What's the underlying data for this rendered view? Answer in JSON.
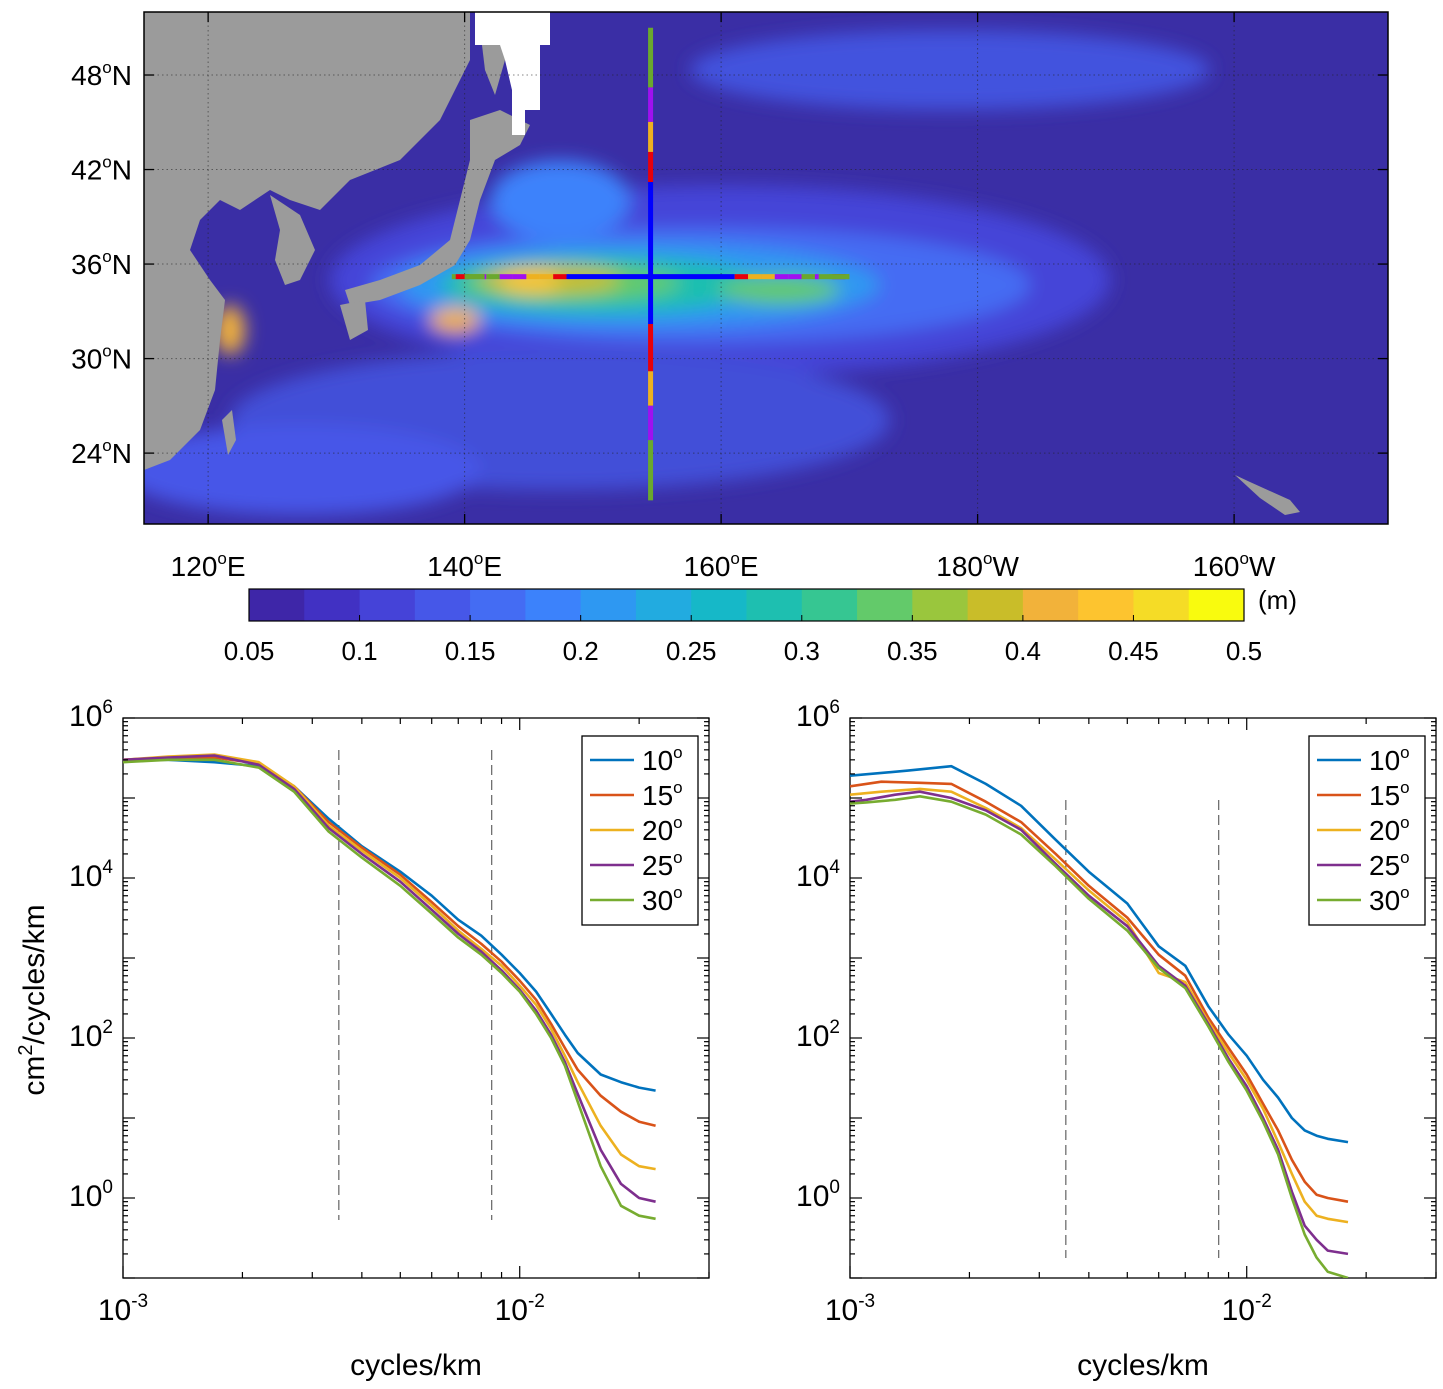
{
  "chart_data": [
    {
      "type": "heatmap",
      "title": "",
      "x_ticks": [
        {
          "lon": 120,
          "label": "120",
          "suffix": "E"
        },
        {
          "lon": 140,
          "label": "140",
          "suffix": "E"
        },
        {
          "lon": 160,
          "label": "160",
          "suffix": "E"
        },
        {
          "lon": 180,
          "label": "180",
          "suffix": "W"
        },
        {
          "lon": 200,
          "label": "160",
          "suffix": "W"
        }
      ],
      "y_ticks": [
        {
          "lat": 24,
          "label": "24",
          "suffix": "N"
        },
        {
          "lat": 30,
          "label": "30",
          "suffix": "N"
        },
        {
          "lat": 36,
          "label": "36",
          "suffix": "N"
        },
        {
          "lat": 42,
          "label": "42",
          "suffix": "N"
        },
        {
          "lat": 48,
          "label": "48",
          "suffix": "N"
        }
      ],
      "xlim": [
        115,
        212
      ],
      "ylim": [
        19.5,
        52
      ],
      "grid": true,
      "colorbar": {
        "unit": "(m)",
        "range": [
          0.05,
          0.5
        ],
        "tick_labels": [
          "0.05",
          "0.1",
          "0.15",
          "0.2",
          "0.25",
          "0.3",
          "0.35",
          "0.4",
          "0.45",
          "0.5"
        ],
        "colors": [
          "#3e26a8",
          "#4131c3",
          "#4543d8",
          "#4657e8",
          "#446cf3",
          "#3c82fb",
          "#2e98f2",
          "#22abe0",
          "#16b8c8",
          "#1ebfb0",
          "#36c692",
          "#63ca6a",
          "#9ac63d",
          "#c9bd29",
          "#f2b23a",
          "#fdc42f",
          "#f5dc26",
          "#f9fb0e"
        ]
      },
      "transects": {
        "zonal": {
          "lat": 35.2,
          "lon_range": [
            140,
            170
          ]
        },
        "meridional": {
          "lon": 154.5,
          "lat_range": [
            21,
            51
          ]
        },
        "segment_colors": [
          "#0000ff",
          "#e8000b",
          "#edb120",
          "#a010f0",
          "#6aa82e"
        ]
      },
      "land_color": "#9b9b9b",
      "ocean_background": "#3a2ea5"
    },
    {
      "type": "line",
      "xscale": "log",
      "yscale": "log",
      "xlabel": "cycles/km",
      "ylabel": "cm2/cycles/km",
      "xlim": [
        0.001,
        0.03
      ],
      "ylim": [
        0.1,
        1000000
      ],
      "x_ticks": [
        {
          "value": 0.001,
          "base": "10",
          "exp": "-3"
        },
        {
          "value": 0.01,
          "base": "10",
          "exp": "-2"
        }
      ],
      "y_ticks": [
        {
          "value": 1,
          "base": "10",
          "exp": "0"
        },
        {
          "value": 100,
          "base": "10",
          "exp": "2"
        },
        {
          "value": 10000,
          "base": "10",
          "exp": "4"
        },
        {
          "value": 1000000,
          "base": "10",
          "exp": "6"
        }
      ],
      "vlines": [
        0.0035,
        0.0085
      ],
      "legend_position": "top-right",
      "series": [
        {
          "name": "10",
          "color": "#0072bd",
          "x": [
            0.001,
            0.0013,
            0.0017,
            0.0022,
            0.0027,
            0.0033,
            0.004,
            0.005,
            0.006,
            0.007,
            0.008,
            0.009,
            0.01,
            0.011,
            0.012,
            0.013,
            0.014,
            0.016,
            0.018,
            0.02,
            0.022
          ],
          "y": [
            300000,
            300000,
            280000,
            250000,
            140000,
            55000,
            25000,
            12000,
            6000,
            3000,
            1900,
            1100,
            650,
            380,
            200,
            110,
            65,
            35,
            28,
            24,
            22
          ]
        },
        {
          "name": "15",
          "color": "#d95319",
          "x": [
            0.001,
            0.0013,
            0.0017,
            0.0022,
            0.0027,
            0.0033,
            0.004,
            0.005,
            0.006,
            0.007,
            0.008,
            0.009,
            0.01,
            0.011,
            0.012,
            0.013,
            0.014,
            0.016,
            0.018,
            0.02,
            0.022
          ],
          "y": [
            300000,
            320000,
            320000,
            270000,
            140000,
            50000,
            24000,
            11000,
            5000,
            2500,
            1500,
            900,
            520,
            300,
            150,
            75,
            40,
            19,
            12,
            9,
            8
          ]
        },
        {
          "name": "20",
          "color": "#edb120",
          "x": [
            0.001,
            0.0013,
            0.0017,
            0.0022,
            0.0027,
            0.0033,
            0.004,
            0.005,
            0.006,
            0.007,
            0.008,
            0.009,
            0.01,
            0.011,
            0.012,
            0.013,
            0.014,
            0.016,
            0.018,
            0.02,
            0.022
          ],
          "y": [
            300000,
            330000,
            350000,
            280000,
            140000,
            45000,
            22000,
            10000,
            4500,
            2200,
            1300,
            800,
            450,
            260,
            130,
            60,
            28,
            8,
            3.5,
            2.5,
            2.3
          ]
        },
        {
          "name": "25",
          "color": "#7e2f8e",
          "x": [
            0.001,
            0.0013,
            0.0017,
            0.0022,
            0.0027,
            0.0033,
            0.004,
            0.005,
            0.006,
            0.007,
            0.008,
            0.009,
            0.01,
            0.011,
            0.012,
            0.013,
            0.014,
            0.016,
            0.018,
            0.02,
            0.022
          ],
          "y": [
            300000,
            320000,
            340000,
            260000,
            130000,
            42000,
            20000,
            9000,
            4000,
            2000,
            1200,
            700,
            400,
            220,
            110,
            50,
            20,
            4,
            1.5,
            1,
            0.9
          ]
        },
        {
          "name": "30",
          "color": "#77ac30",
          "x": [
            0.001,
            0.0013,
            0.0017,
            0.0022,
            0.0027,
            0.0033,
            0.004,
            0.005,
            0.006,
            0.007,
            0.008,
            0.009,
            0.01,
            0.011,
            0.012,
            0.013,
            0.014,
            0.016,
            0.018,
            0.02,
            0.022
          ],
          "y": [
            280000,
            300000,
            300000,
            240000,
            120000,
            38000,
            18000,
            8000,
            3600,
            1800,
            1100,
            650,
            380,
            200,
            100,
            45,
            16,
            2.5,
            0.8,
            0.6,
            0.55
          ]
        }
      ]
    },
    {
      "type": "line",
      "xscale": "log",
      "yscale": "log",
      "xlabel": "cycles/km",
      "ylabel": "",
      "xlim": [
        0.001,
        0.03
      ],
      "ylim": [
        0.1,
        1000000
      ],
      "x_ticks": [
        {
          "value": 0.001,
          "base": "10",
          "exp": "-3"
        },
        {
          "value": 0.01,
          "base": "10",
          "exp": "-2"
        }
      ],
      "y_ticks": [
        {
          "value": 1,
          "base": "10",
          "exp": "0"
        },
        {
          "value": 100,
          "base": "10",
          "exp": "2"
        },
        {
          "value": 10000,
          "base": "10",
          "exp": "4"
        },
        {
          "value": 1000000,
          "base": "10",
          "exp": "6"
        }
      ],
      "vlines": [
        0.0035,
        0.0085
      ],
      "legend_position": "top-right",
      "series": [
        {
          "name": "10",
          "color": "#0072bd",
          "x": [
            0.001,
            0.0014,
            0.0018,
            0.0022,
            0.0027,
            0.0033,
            0.004,
            0.005,
            0.006,
            0.007,
            0.008,
            0.009,
            0.01,
            0.011,
            0.012,
            0.013,
            0.014,
            0.015,
            0.016,
            0.018
          ],
          "y": [
            190000,
            220000,
            250000,
            150000,
            80000,
            30000,
            12000,
            4800,
            1400,
            800,
            250,
            110,
            60,
            30,
            18,
            10,
            7,
            6,
            5.5,
            5
          ]
        },
        {
          "name": "15",
          "color": "#d95319",
          "x": [
            0.001,
            0.0012,
            0.0015,
            0.0018,
            0.0022,
            0.0027,
            0.0033,
            0.004,
            0.005,
            0.006,
            0.007,
            0.008,
            0.009,
            0.01,
            0.011,
            0.012,
            0.013,
            0.014,
            0.015,
            0.016,
            0.018
          ],
          "y": [
            140000,
            160000,
            155000,
            150000,
            90000,
            50000,
            20000,
            8000,
            3200,
            1100,
            600,
            180,
            75,
            35,
            15,
            7,
            3,
            1.6,
            1.1,
            1,
            0.9
          ]
        },
        {
          "name": "20",
          "color": "#edb120",
          "x": [
            0.001,
            0.0012,
            0.0015,
            0.0018,
            0.0022,
            0.0027,
            0.0033,
            0.004,
            0.005,
            0.006,
            0.007,
            0.008,
            0.009,
            0.01,
            0.011,
            0.012,
            0.013,
            0.014,
            0.015,
            0.016,
            0.018
          ],
          "y": [
            110000,
            120000,
            130000,
            120000,
            75000,
            42000,
            17000,
            7000,
            2800,
            650,
            500,
            160,
            65,
            30,
            13,
            5,
            2,
            0.9,
            0.6,
            0.55,
            0.5
          ]
        },
        {
          "name": "25",
          "color": "#7e2f8e",
          "x": [
            0.001,
            0.0011,
            0.0013,
            0.0015,
            0.0018,
            0.0022,
            0.0027,
            0.0033,
            0.004,
            0.005,
            0.006,
            0.007,
            0.008,
            0.009,
            0.01,
            0.011,
            0.012,
            0.013,
            0.014,
            0.015,
            0.016,
            0.018
          ],
          "y": [
            90000,
            95000,
            110000,
            120000,
            100000,
            70000,
            40000,
            15000,
            6000,
            2500,
            800,
            450,
            150,
            55,
            25,
            10,
            4,
            1.2,
            0.45,
            0.3,
            0.22,
            0.2
          ]
        },
        {
          "name": "30",
          "color": "#77ac30",
          "x": [
            0.001,
            0.0011,
            0.0013,
            0.0015,
            0.0018,
            0.0022,
            0.0027,
            0.0033,
            0.004,
            0.005,
            0.006,
            0.007,
            0.008,
            0.009,
            0.01,
            0.011,
            0.012,
            0.013,
            0.014,
            0.015,
            0.016,
            0.018
          ],
          "y": [
            85000,
            88000,
            95000,
            105000,
            90000,
            62000,
            35000,
            14000,
            5500,
            2200,
            750,
            420,
            140,
            50,
            22,
            9,
            3.5,
            1,
            0.35,
            0.18,
            0.12,
            0.1
          ]
        }
      ]
    }
  ]
}
